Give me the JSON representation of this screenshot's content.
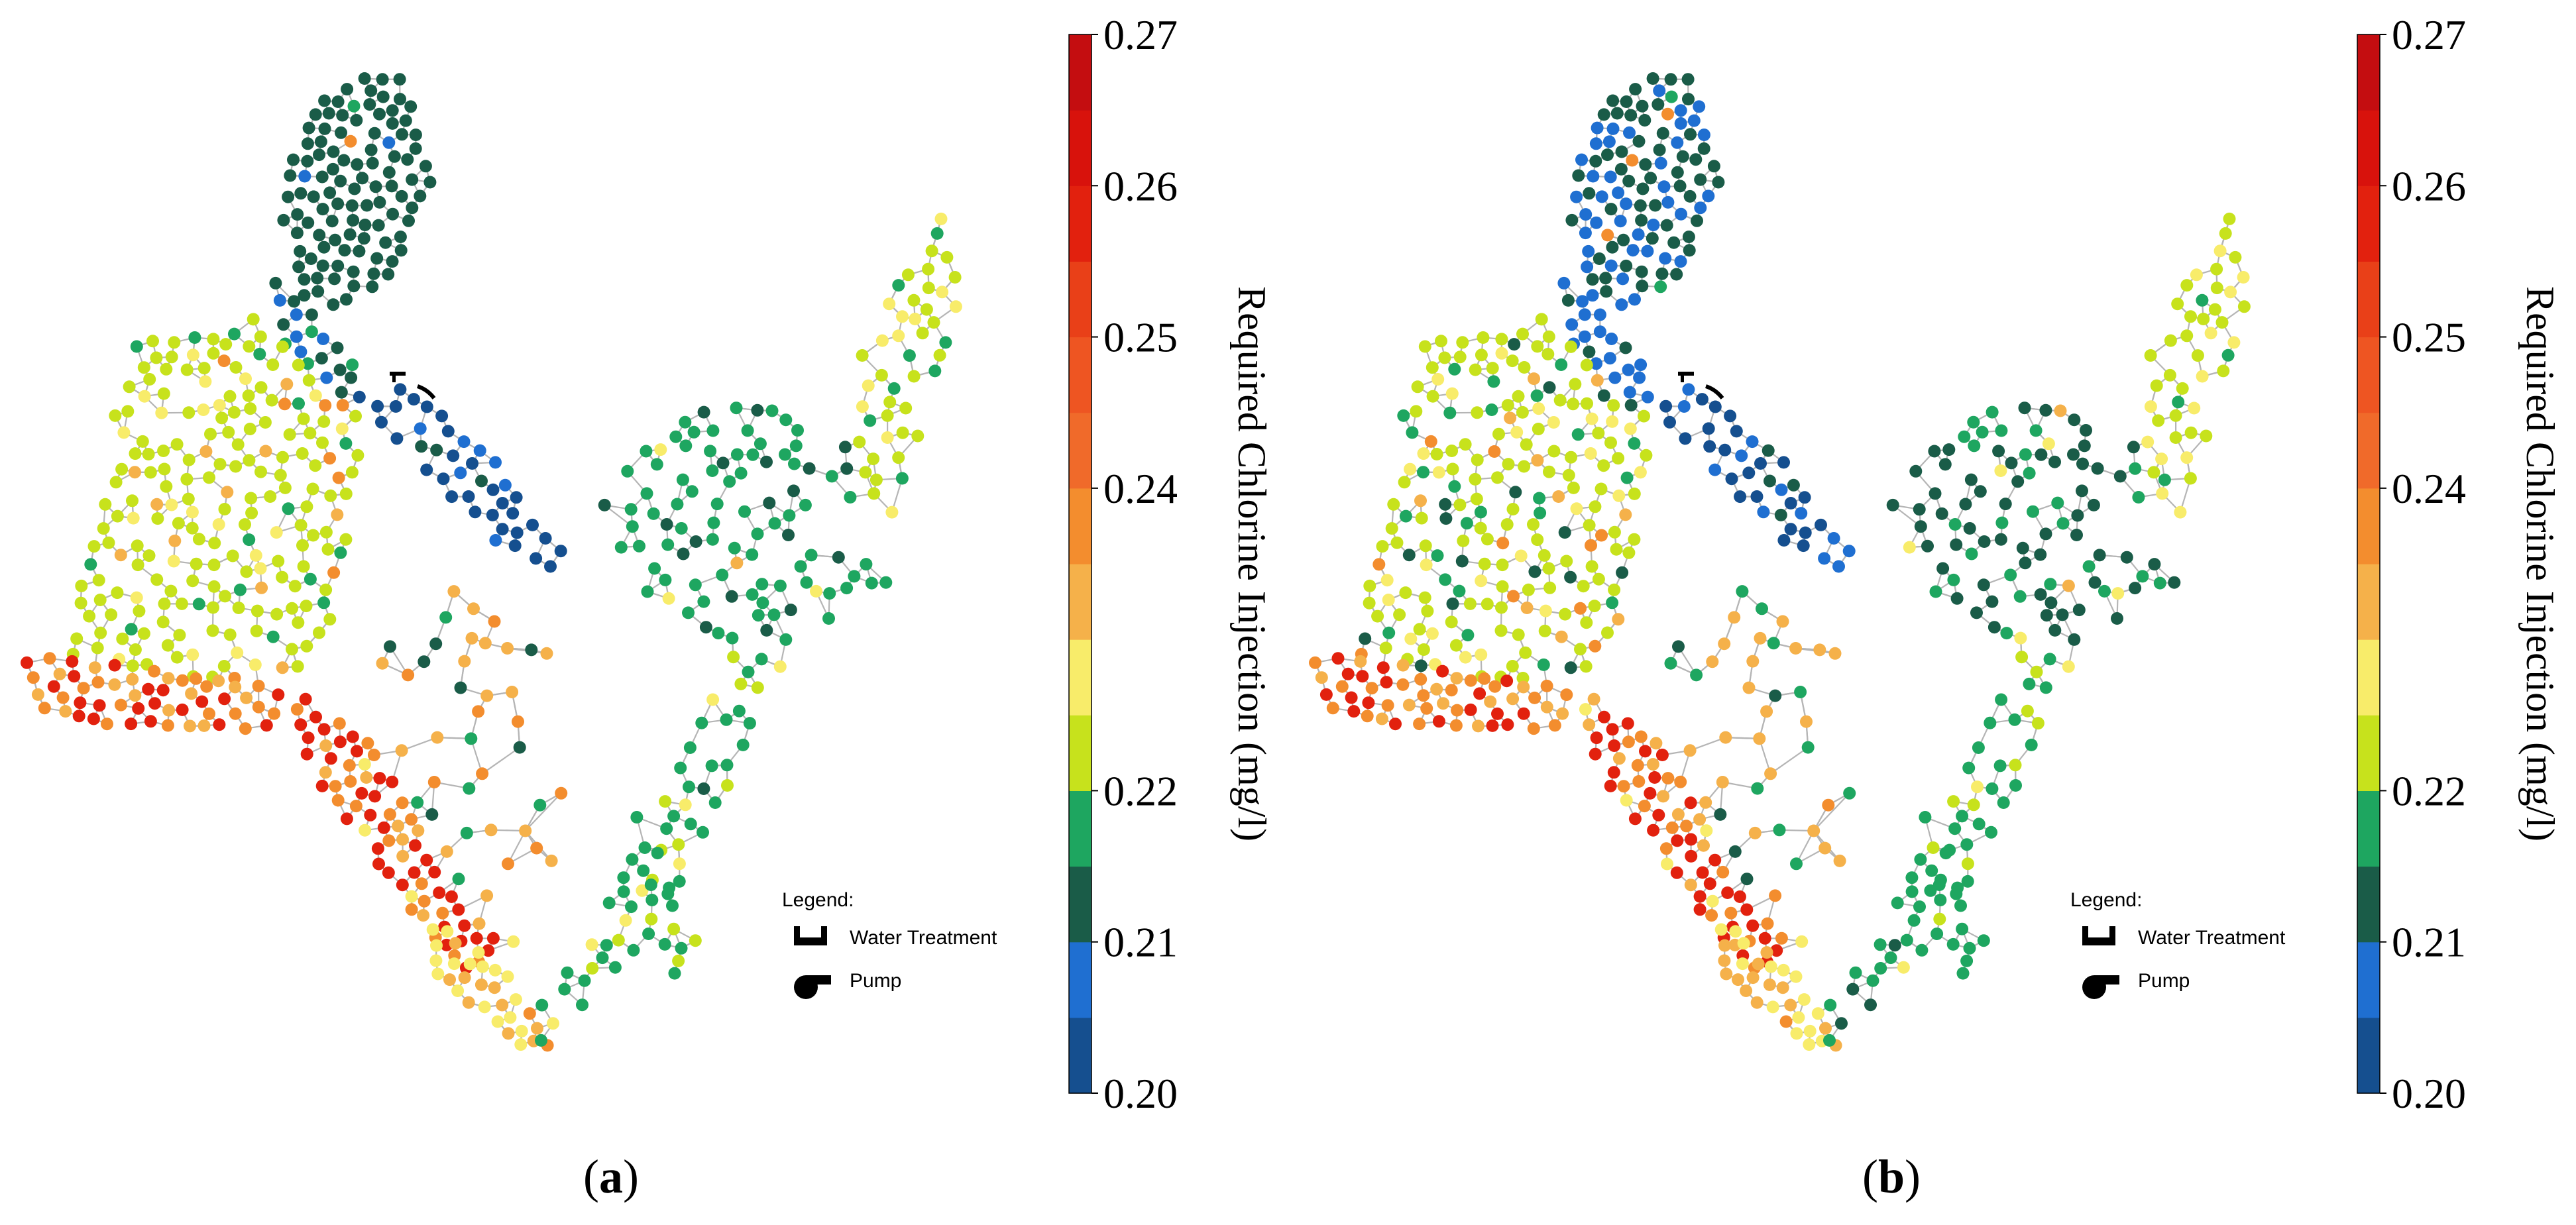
{
  "figure": {
    "panels": [
      {
        "id": "a",
        "caption_label": "a",
        "scenario": "left network map"
      },
      {
        "id": "b",
        "caption_label": "b",
        "scenario": "right network map"
      }
    ],
    "colorbar": {
      "title": "Required Chlorine Injection (mg/l)",
      "min": 0.2,
      "max": 0.27,
      "ticks": [
        "0.20",
        "0.21",
        "0.22",
        "0.23",
        "0.24",
        "0.25",
        "0.26",
        "0.27"
      ],
      "tick_labels_shown": [
        "0.20",
        "0.21",
        "0.22",
        "0.24",
        "0.25",
        "0.26",
        "0.27"
      ],
      "bands": [
        {
          "from": 0.2,
          "to": 0.205,
          "color": "#154f8f"
        },
        {
          "from": 0.205,
          "to": 0.21,
          "color": "#1f6fd1"
        },
        {
          "from": 0.21,
          "to": 0.215,
          "color": "#1a5c48"
        },
        {
          "from": 0.215,
          "to": 0.22,
          "color": "#1ea660"
        },
        {
          "from": 0.22,
          "to": 0.225,
          "color": "#c7e21c"
        },
        {
          "from": 0.225,
          "to": 0.23,
          "color": "#f8ec6a"
        },
        {
          "from": 0.23,
          "to": 0.235,
          "color": "#f5b14a"
        },
        {
          "from": 0.235,
          "to": 0.24,
          "color": "#f38d2e"
        },
        {
          "from": 0.24,
          "to": 0.245,
          "color": "#f06a2a"
        },
        {
          "from": 0.245,
          "to": 0.25,
          "color": "#ee5522"
        },
        {
          "from": 0.25,
          "to": 0.255,
          "color": "#e94018"
        },
        {
          "from": 0.255,
          "to": 0.26,
          "color": "#e2210e"
        },
        {
          "from": 0.26,
          "to": 0.265,
          "color": "#d8120c"
        },
        {
          "from": 0.265,
          "to": 0.27,
          "color": "#c40d10"
        }
      ]
    },
    "legend": {
      "title": "Legend:",
      "items": [
        {
          "icon": "water-treatment-icon",
          "label": "Water Treatment"
        },
        {
          "icon": "pump-icon",
          "label": "Pump"
        }
      ]
    },
    "node_colors": {
      "darkblue": "#154f8f",
      "blue": "#1f6fd1",
      "darkgreen": "#1a5c48",
      "green": "#1ea660",
      "lime": "#c7e21c",
      "yellow": "#f8ec6a",
      "lightorange": "#f5b14a",
      "orange": "#f38d2e",
      "red": "#e2210e",
      "edge": "#b5b5b5"
    }
  }
}
